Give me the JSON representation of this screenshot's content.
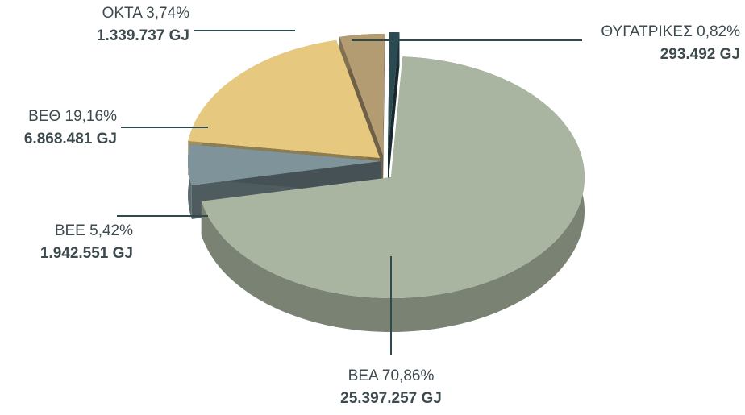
{
  "chart_data": {
    "type": "pie",
    "categories": [
      "ΒΕΑ",
      "ΒΕΕ",
      "ΒΕΘ",
      "ΟΚΤΑ",
      "ΘΥΓΑΤΡΙΚΕΣ"
    ],
    "values": [
      70.86,
      5.42,
      19.16,
      3.74,
      0.82
    ],
    "value_labels": [
      "70,86%",
      "5,42%",
      "19,16%",
      "3,74%",
      "0,82%"
    ],
    "amounts": [
      25397257,
      1942551,
      6868481,
      1339737,
      293492
    ],
    "amount_labels": [
      "25.397.257 GJ",
      "1.942.551 GJ",
      "6.868.481 GJ",
      "1.339.737 GJ",
      "293.492 GJ"
    ],
    "colors": [
      "#a9b5a0",
      "#7e939a",
      "#e6c97e",
      "#b39c72",
      "#2b4a52"
    ]
  }
}
